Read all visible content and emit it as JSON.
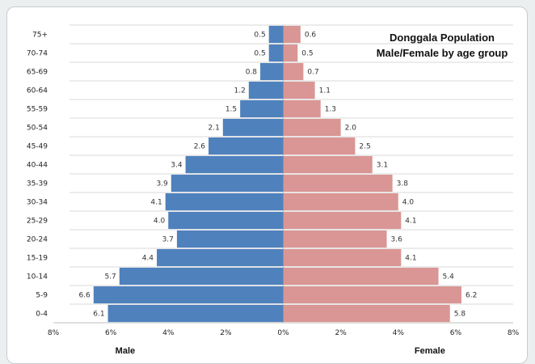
{
  "chart_data": {
    "type": "bar",
    "orientation": "horizontal",
    "subtype": "population-pyramid",
    "title": [
      "Donggala Population",
      "Male/Female by age group"
    ],
    "categories": [
      "75+",
      "70-74",
      "65-69",
      "60-64",
      "55-59",
      "50-54",
      "45-49",
      "40-44",
      "35-39",
      "30-34",
      "25-29",
      "20-24",
      "15-19",
      "10-14",
      "5-9",
      "0-4"
    ],
    "series": [
      {
        "name": "Male",
        "color": "#4f81bd",
        "values": [
          0.5,
          0.5,
          0.8,
          1.2,
          1.5,
          2.1,
          2.6,
          3.4,
          3.9,
          4.1,
          4.0,
          3.7,
          4.4,
          5.7,
          6.6,
          6.1
        ]
      },
      {
        "name": "Female",
        "color": "#d99694",
        "values": [
          0.6,
          0.5,
          0.7,
          1.1,
          1.3,
          2.0,
          2.5,
          3.1,
          3.8,
          4.0,
          4.1,
          3.6,
          4.1,
          5.4,
          6.2,
          5.8
        ]
      }
    ],
    "xlim": [
      -8,
      8
    ],
    "xticks": [
      "8%",
      "6%",
      "4%",
      "2%",
      "0%",
      "2%",
      "4%",
      "6%",
      "8%"
    ],
    "grid": true,
    "legend": "none"
  }
}
